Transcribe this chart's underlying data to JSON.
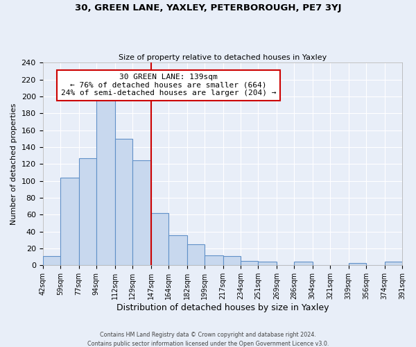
{
  "title": "30, GREEN LANE, YAXLEY, PETERBOROUGH, PE7 3YJ",
  "subtitle": "Size of property relative to detached houses in Yaxley",
  "xlabel": "Distribution of detached houses by size in Yaxley",
  "ylabel": "Number of detached properties",
  "footer_line1": "Contains HM Land Registry data © Crown copyright and database right 2024.",
  "footer_line2": "Contains public sector information licensed under the Open Government Licence v3.0.",
  "bin_labels": [
    "42sqm",
    "59sqm",
    "77sqm",
    "94sqm",
    "112sqm",
    "129sqm",
    "147sqm",
    "164sqm",
    "182sqm",
    "199sqm",
    "217sqm",
    "234sqm",
    "251sqm",
    "269sqm",
    "286sqm",
    "304sqm",
    "321sqm",
    "339sqm",
    "356sqm",
    "374sqm",
    "391sqm"
  ],
  "bar_values": [
    11,
    104,
    127,
    198,
    150,
    124,
    62,
    36,
    25,
    12,
    11,
    5,
    4,
    0,
    4,
    0,
    0,
    3,
    0,
    4
  ],
  "bar_color": "#c8d8ee",
  "bar_edge_color": "#6090c8",
  "vline_x_index": 5,
  "vline_color": "#cc0000",
  "annotation_title": "30 GREEN LANE: 139sqm",
  "annotation_line1": "← 76% of detached houses are smaller (664)",
  "annotation_line2": "24% of semi-detached houses are larger (204) →",
  "annotation_box_color": "white",
  "annotation_box_edge": "#cc0000",
  "ylim": [
    0,
    240
  ],
  "yticks": [
    0,
    20,
    40,
    60,
    80,
    100,
    120,
    140,
    160,
    180,
    200,
    220,
    240
  ],
  "bin_edges": [
    42,
    59,
    77,
    94,
    112,
    129,
    147,
    164,
    182,
    199,
    217,
    234,
    251,
    269,
    286,
    304,
    321,
    339,
    356,
    374,
    391
  ],
  "background_color": "#e8eef8",
  "grid_color": "white",
  "title_fontsize": 9.5,
  "subtitle_fontsize": 8,
  "ylabel_fontsize": 8,
  "xlabel_fontsize": 9
}
